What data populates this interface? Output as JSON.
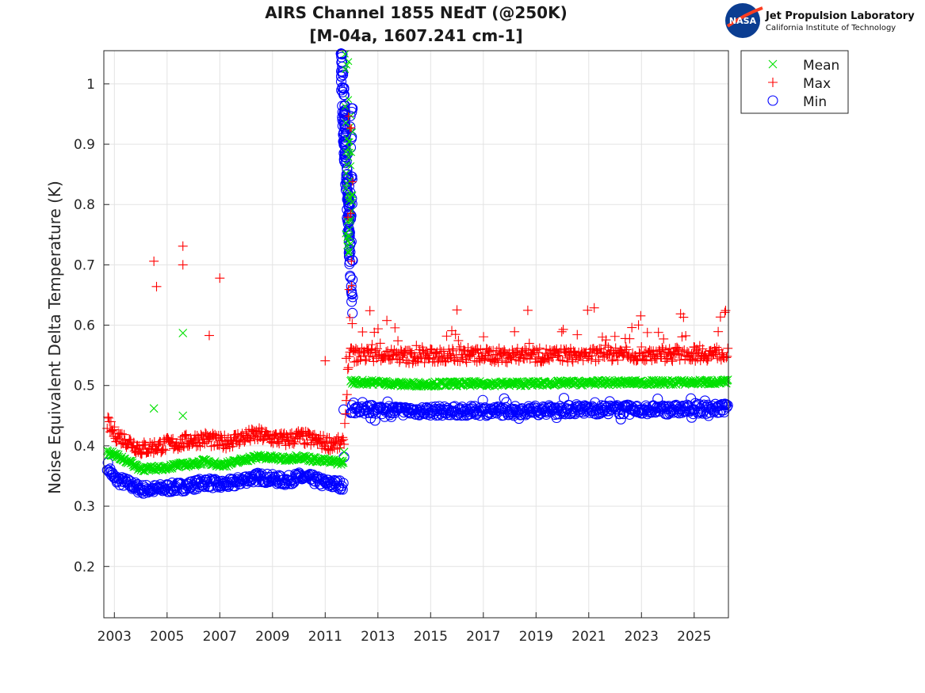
{
  "chart_data": {
    "type": "scatter",
    "title_line1": "AIRS Channel 1855 NEdT (@250K)",
    "title_line2": "[M-04a, 1607.241 cm-1]",
    "ylabel": "Noise Equivalent Delta Temperature (K)",
    "xlim": [
      2002.6,
      2026.3
    ],
    "ylim": [
      0.115,
      1.055
    ],
    "grid": true,
    "legend_position": "outside-top-right",
    "x_ticks": [
      "2003",
      "2005",
      "2007",
      "2009",
      "2011",
      "2013",
      "2015",
      "2017",
      "2019",
      "2021",
      "2023",
      "2025"
    ],
    "y_ticks": [
      "0.2",
      "0.3",
      "0.4",
      "0.5",
      "0.6",
      "0.7",
      "0.8",
      "0.9",
      "1"
    ],
    "series": [
      {
        "name": "Mean",
        "marker": "x",
        "color": "#00e000",
        "trend": [
          [
            2002.7,
            0.39
          ],
          [
            2003.0,
            0.385
          ],
          [
            2003.5,
            0.375
          ],
          [
            2004.0,
            0.362
          ],
          [
            2004.5,
            0.362
          ],
          [
            2005.0,
            0.365
          ],
          [
            2005.5,
            0.368
          ],
          [
            2006.0,
            0.37
          ],
          [
            2006.5,
            0.375
          ],
          [
            2007.0,
            0.368
          ],
          [
            2007.5,
            0.372
          ],
          [
            2008.0,
            0.378
          ],
          [
            2008.5,
            0.382
          ],
          [
            2009.0,
            0.38
          ],
          [
            2009.5,
            0.378
          ],
          [
            2010.0,
            0.382
          ],
          [
            2010.5,
            0.378
          ],
          [
            2011.0,
            0.375
          ],
          [
            2011.7,
            0.372
          ],
          [
            2011.8,
            0.506
          ],
          [
            2013.0,
            0.505
          ],
          [
            2014.0,
            0.502
          ],
          [
            2016.0,
            0.503
          ],
          [
            2018.0,
            0.503
          ],
          [
            2020.0,
            0.504
          ],
          [
            2022.0,
            0.505
          ],
          [
            2024.0,
            0.505
          ],
          [
            2026.3,
            0.506
          ]
        ],
        "outliers": [
          [
            2004.5,
            0.462
          ],
          [
            2005.6,
            0.45
          ],
          [
            2005.6,
            0.587
          ]
        ]
      },
      {
        "name": "Max",
        "marker": "+",
        "color": "#ff0000",
        "trend": [
          [
            2002.7,
            0.44
          ],
          [
            2003.0,
            0.42
          ],
          [
            2003.5,
            0.408
          ],
          [
            2004.0,
            0.395
          ],
          [
            2004.5,
            0.398
          ],
          [
            2005.0,
            0.402
          ],
          [
            2005.5,
            0.405
          ],
          [
            2006.0,
            0.41
          ],
          [
            2006.5,
            0.412
          ],
          [
            2007.0,
            0.405
          ],
          [
            2007.5,
            0.41
          ],
          [
            2008.0,
            0.415
          ],
          [
            2008.5,
            0.418
          ],
          [
            2009.0,
            0.413
          ],
          [
            2009.5,
            0.41
          ],
          [
            2010.0,
            0.415
          ],
          [
            2010.5,
            0.41
          ],
          [
            2011.0,
            0.405
          ],
          [
            2011.7,
            0.402
          ],
          [
            2011.9,
            0.55
          ],
          [
            2013.0,
            0.552
          ],
          [
            2014.0,
            0.548
          ],
          [
            2016.0,
            0.55
          ],
          [
            2018.0,
            0.55
          ],
          [
            2020.0,
            0.55
          ],
          [
            2022.0,
            0.552
          ],
          [
            2024.0,
            0.552
          ],
          [
            2026.3,
            0.553
          ]
        ],
        "outliers": [
          [
            2004.5,
            0.706
          ],
          [
            2004.6,
            0.664
          ],
          [
            2005.6,
            0.731
          ],
          [
            2005.6,
            0.7
          ],
          [
            2006.6,
            0.583
          ],
          [
            2007.0,
            0.678
          ],
          [
            2011.0,
            0.541
          ],
          [
            2011.8,
            0.545
          ]
        ]
      },
      {
        "name": "Min",
        "marker": "o",
        "color": "#0000ff",
        "trend": [
          [
            2002.7,
            0.37
          ],
          [
            2003.0,
            0.345
          ],
          [
            2003.5,
            0.338
          ],
          [
            2004.0,
            0.328
          ],
          [
            2004.5,
            0.328
          ],
          [
            2005.0,
            0.33
          ],
          [
            2005.5,
            0.332
          ],
          [
            2006.0,
            0.335
          ],
          [
            2006.5,
            0.34
          ],
          [
            2007.0,
            0.335
          ],
          [
            2007.5,
            0.338
          ],
          [
            2008.0,
            0.345
          ],
          [
            2008.5,
            0.348
          ],
          [
            2009.0,
            0.345
          ],
          [
            2009.5,
            0.342
          ],
          [
            2010.0,
            0.348
          ],
          [
            2010.5,
            0.345
          ],
          [
            2011.0,
            0.338
          ],
          [
            2011.7,
            0.335
          ],
          [
            2011.75,
            0.46
          ],
          [
            2013.0,
            0.46
          ],
          [
            2014.0,
            0.458
          ],
          [
            2016.0,
            0.458
          ],
          [
            2018.0,
            0.458
          ],
          [
            2020.0,
            0.46
          ],
          [
            2022.0,
            0.46
          ],
          [
            2024.0,
            0.46
          ],
          [
            2026.3,
            0.462
          ]
        ],
        "outliers": [
          [
            2011.7,
            0.46
          ]
        ]
      }
    ],
    "anomaly_2012": {
      "x_range": [
        2011.6,
        2012.05
      ],
      "y_range": [
        0.62,
        1.05
      ],
      "note_values": [
        [
          2011.65,
          1.02
        ],
        [
          2011.7,
          0.95
        ],
        [
          2011.75,
          0.86
        ],
        [
          2011.8,
          0.8
        ],
        [
          2011.85,
          0.72
        ],
        [
          2011.9,
          0.66
        ],
        [
          2011.95,
          0.63
        ],
        [
          2012.0,
          0.93
        ],
        [
          2011.8,
          1.05
        ]
      ]
    }
  },
  "legend": {
    "items": [
      {
        "label": "Mean",
        "marker": "x",
        "color": "#00e000"
      },
      {
        "label": "Max",
        "marker": "+",
        "color": "#ff0000"
      },
      {
        "label": "Min",
        "marker": "o",
        "color": "#0000ff"
      }
    ]
  },
  "logo": {
    "badge": "NASA",
    "line1": "Jet Propulsion Laboratory",
    "line2": "California Institute of Technology"
  }
}
